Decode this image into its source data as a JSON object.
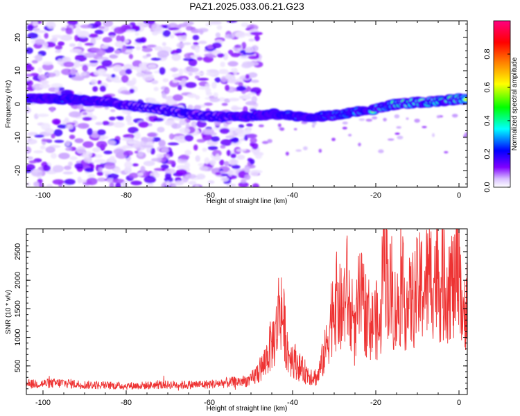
{
  "title": "PAZ1.2025.033.06.21.G23",
  "chart_data": [
    {
      "type": "heatmap",
      "xlabel": "Height of straight line (km)",
      "ylabel": "Frequency (Hz)",
      "xlim": [
        -104,
        2
      ],
      "ylim": [
        -25,
        25
      ],
      "x_ticks": [
        -100,
        -80,
        -60,
        -40,
        -20,
        0
      ],
      "y_ticks": [
        -20,
        -10,
        0,
        10,
        20
      ],
      "colorbar": {
        "label": "Normalized spectral amplitude",
        "range": [
          0.0,
          1.0
        ],
        "ticks": [
          0.0,
          0.2,
          0.4,
          0.6,
          0.8
        ],
        "tick_labels": [
          "0.0",
          "0.2",
          "0.4",
          "0.6",
          "0.8"
        ],
        "colors": [
          "#ffffff",
          "#8000ff",
          "#0000ff",
          "#00ffff",
          "#00ff00",
          "#ffff00",
          "#ff8000",
          "#ff0000",
          "#ff0080"
        ]
      },
      "ridge": {
        "x": [
          -104,
          -95,
          -85,
          -75,
          -65,
          -58,
          -50,
          -45,
          -40,
          -35,
          -30,
          -25,
          -20,
          -15,
          -10,
          -5,
          0,
          2
        ],
        "y": [
          1.5,
          1.5,
          0.5,
          -1.0,
          -3.0,
          -3.8,
          -3.8,
          -3.0,
          -3.5,
          -3.8,
          -3.5,
          -2.5,
          -1.5,
          0.0,
          0.5,
          0.8,
          1.5,
          1.5
        ],
        "amplitude": [
          0.25,
          0.3,
          0.2,
          0.15,
          0.15,
          0.18,
          0.25,
          0.3,
          0.35,
          0.35,
          0.5,
          0.55,
          0.6,
          0.65,
          0.75,
          0.75,
          0.7,
          0.6
        ]
      },
      "noise_region_end_km": -50
    },
    {
      "type": "line",
      "xlabel": "Height of straight line (km)",
      "ylabel": "SNR (10 * v/v)",
      "xlim": [
        -104,
        2
      ],
      "ylim": [
        0,
        2900
      ],
      "x_ticks": [
        -100,
        -80,
        -60,
        -40,
        -20,
        0
      ],
      "y_ticks": [
        500,
        1000,
        1500,
        2000,
        2500
      ],
      "series": [
        {
          "color": "#ee3333",
          "x": [
            -104,
            -100,
            -95,
            -90,
            -85,
            -80,
            -75,
            -70,
            -65,
            -60,
            -55,
            -50,
            -47,
            -45,
            -44,
            -43,
            -41,
            -40,
            -38,
            -36,
            -34,
            -32,
            -30,
            -28,
            -27,
            -26,
            -25,
            -24,
            -22,
            -21,
            -20,
            -19,
            -18,
            -17,
            -16,
            -15,
            -14,
            -12,
            -10,
            -8,
            -6,
            -4,
            -2,
            -1,
            0,
            1,
            2
          ],
          "y": [
            180,
            190,
            200,
            170,
            160,
            150,
            160,
            170,
            170,
            180,
            210,
            250,
            500,
            900,
            1050,
            1650,
            700,
            650,
            450,
            350,
            300,
            800,
            1700,
            1400,
            1900,
            1300,
            1000,
            1700,
            1400,
            1200,
            1350,
            1000,
            2900,
            1900,
            1650,
            1400,
            1800,
            1550,
            1800,
            1950,
            2100,
            1900,
            2000,
            1800,
            2650,
            1100,
            2050
          ]
        }
      ]
    }
  ]
}
